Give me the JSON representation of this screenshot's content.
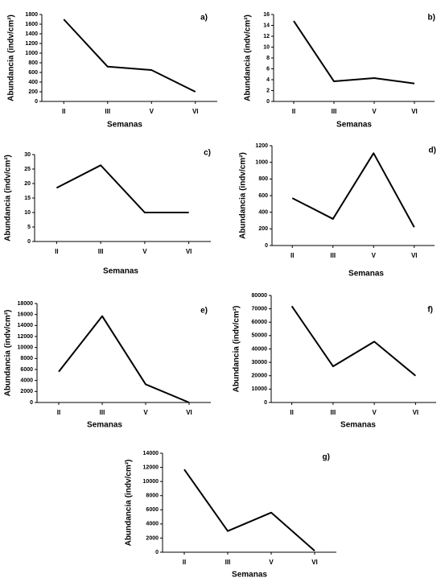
{
  "chart_data": [
    {
      "type": "line",
      "label": "a)",
      "ylabel": "Abundancia (indv/cm²)",
      "xlabel": "Semanas",
      "categories": [
        "II",
        "III",
        "V",
        "VI"
      ],
      "values": [
        1700,
        720,
        650,
        200
      ],
      "ylim": [
        0,
        1800
      ],
      "yticks": [
        0,
        200,
        400,
        600,
        800,
        1000,
        1200,
        1400,
        1600,
        1800
      ],
      "color": "#000000"
    },
    {
      "type": "line",
      "label": "b)",
      "ylabel": "Abundancia (indv/cm²)",
      "xlabel": "Semanas",
      "categories": [
        "II",
        "III",
        "V",
        "VI"
      ],
      "values": [
        14.8,
        3.7,
        4.3,
        3.3
      ],
      "ylim": [
        0,
        16
      ],
      "yticks": [
        0,
        2,
        4,
        6,
        8,
        10,
        12,
        14,
        16
      ],
      "color": "#000000"
    },
    {
      "type": "line",
      "label": "c)",
      "ylabel": "Abundancia (indv/cm²)",
      "xlabel": "Semanas",
      "categories": [
        "II",
        "III",
        "V",
        "VI"
      ],
      "values": [
        18.5,
        26.3,
        10,
        10
      ],
      "ylim": [
        0,
        30
      ],
      "yticks": [
        0,
        5,
        10,
        15,
        20,
        25,
        30
      ],
      "color": "#000000"
    },
    {
      "type": "line",
      "label": "d)",
      "ylabel": "Abundancia (indv/cm²)",
      "xlabel": "Semanas",
      "categories": [
        "II",
        "III",
        "V",
        "VI"
      ],
      "values": [
        570,
        320,
        1110,
        220
      ],
      "ylim": [
        0,
        1200
      ],
      "yticks": [
        0,
        200,
        400,
        600,
        800,
        1000,
        1200
      ],
      "color": "#000000"
    },
    {
      "type": "line",
      "label": "e)",
      "ylabel": "Abundancia (indv/cm²)",
      "xlabel": "Semanas",
      "categories": [
        "II",
        "III",
        "V",
        "VI"
      ],
      "values": [
        5600,
        15700,
        3300,
        0
      ],
      "ylim": [
        0,
        18000
      ],
      "yticks": [
        0,
        2000,
        4000,
        6000,
        8000,
        10000,
        12000,
        14000,
        16000,
        18000
      ],
      "color": "#000000"
    },
    {
      "type": "line",
      "label": "f)",
      "ylabel": "Abundancia (indv/cm²)",
      "xlabel": "Semanas",
      "categories": [
        "II",
        "III",
        "V",
        "VI"
      ],
      "values": [
        72000,
        27000,
        45500,
        20000
      ],
      "ylim": [
        0,
        80000
      ],
      "yticks": [
        0,
        10000,
        20000,
        30000,
        40000,
        50000,
        60000,
        70000,
        80000
      ],
      "color": "#000000"
    },
    {
      "type": "line",
      "label": "g)",
      "ylabel": "Abundancia (indv/cm²)",
      "xlabel": "Semanas",
      "categories": [
        "II",
        "III",
        "V",
        "VI"
      ],
      "values": [
        11700,
        3000,
        5600,
        200
      ],
      "ylim": [
        0,
        14000
      ],
      "yticks": [
        0,
        2000,
        4000,
        6000,
        8000,
        10000,
        12000,
        14000
      ],
      "color": "#000000"
    }
  ]
}
